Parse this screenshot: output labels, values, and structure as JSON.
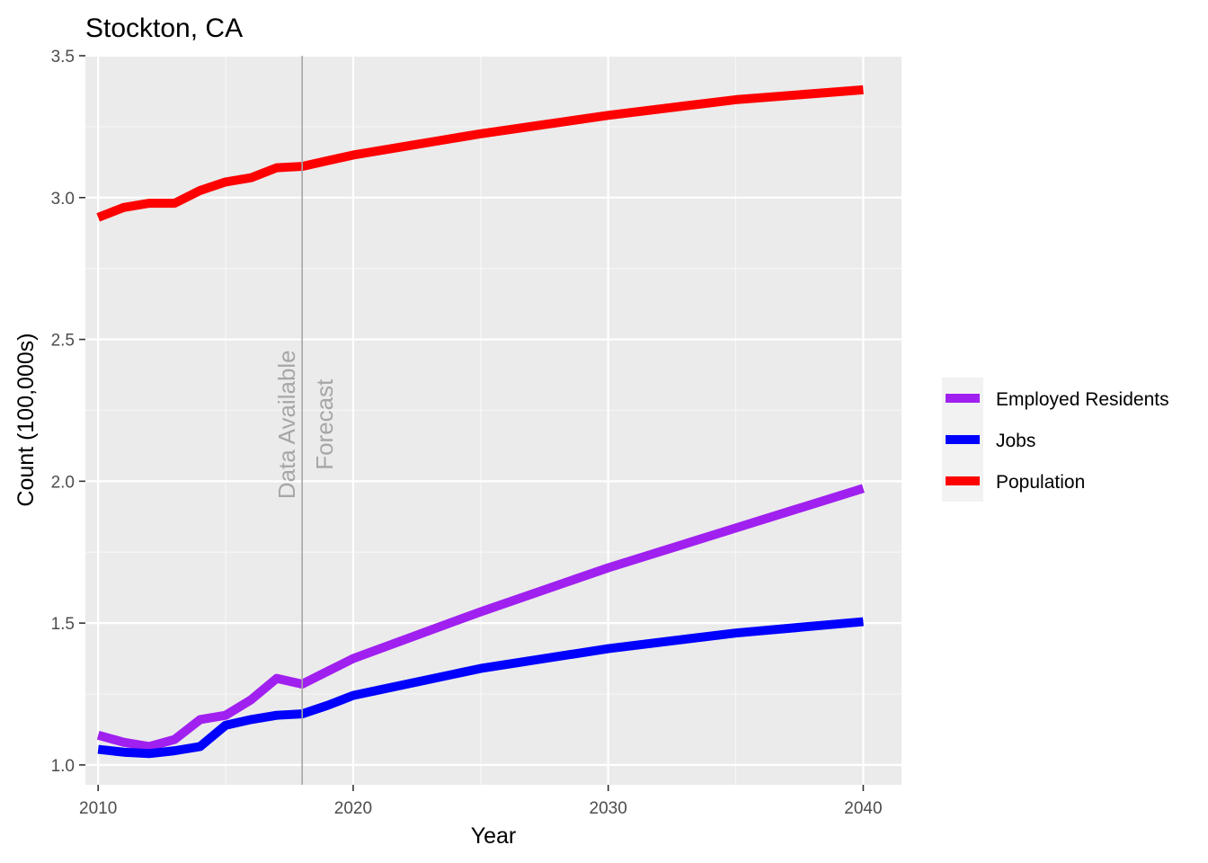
{
  "chart_data": {
    "type": "line",
    "title": "Stockton, CA",
    "xlabel": "Year",
    "ylabel": "Count (100,000s)",
    "xlim": [
      2009.5,
      2041.5
    ],
    "ylim": [
      0.93,
      3.5
    ],
    "x_ticks": [
      2010,
      2020,
      2030,
      2040
    ],
    "x_tick_labels": [
      "2010",
      "2020",
      "2030",
      "2040"
    ],
    "y_ticks": [
      1.0,
      1.5,
      2.0,
      2.5,
      3.0,
      3.5
    ],
    "y_tick_labels": [
      "1.0",
      "1.5",
      "2.0",
      "2.5",
      "3.0",
      "3.5"
    ],
    "grid": true,
    "legend_position": "right",
    "vline": {
      "x": 2018,
      "label_left": "Data Available",
      "label_right": "Forecast",
      "color": "#a6a6a6"
    },
    "series": [
      {
        "name": "Employed Residents",
        "color": "#a020f0",
        "x": [
          2010,
          2011,
          2012,
          2013,
          2014,
          2015,
          2016,
          2017,
          2018,
          2019,
          2020,
          2025,
          2030,
          2035,
          2040
        ],
        "values": [
          1.105,
          1.08,
          1.065,
          1.09,
          1.16,
          1.175,
          1.23,
          1.305,
          1.285,
          1.33,
          1.375,
          1.54,
          1.695,
          1.835,
          1.975
        ]
      },
      {
        "name": "Jobs",
        "color": "#0000ff",
        "x": [
          2010,
          2011,
          2012,
          2013,
          2014,
          2015,
          2016,
          2017,
          2018,
          2019,
          2020,
          2025,
          2030,
          2035,
          2040
        ],
        "values": [
          1.055,
          1.045,
          1.04,
          1.05,
          1.065,
          1.14,
          1.16,
          1.175,
          1.18,
          1.21,
          1.245,
          1.34,
          1.41,
          1.465,
          1.505
        ]
      },
      {
        "name": "Population",
        "color": "#ff0000",
        "x": [
          2010,
          2011,
          2012,
          2013,
          2014,
          2015,
          2016,
          2017,
          2018,
          2019,
          2020,
          2025,
          2030,
          2035,
          2040
        ],
        "values": [
          2.93,
          2.965,
          2.98,
          2.98,
          3.025,
          3.055,
          3.07,
          3.105,
          3.11,
          3.13,
          3.15,
          3.225,
          3.29,
          3.345,
          3.38
        ]
      }
    ]
  }
}
